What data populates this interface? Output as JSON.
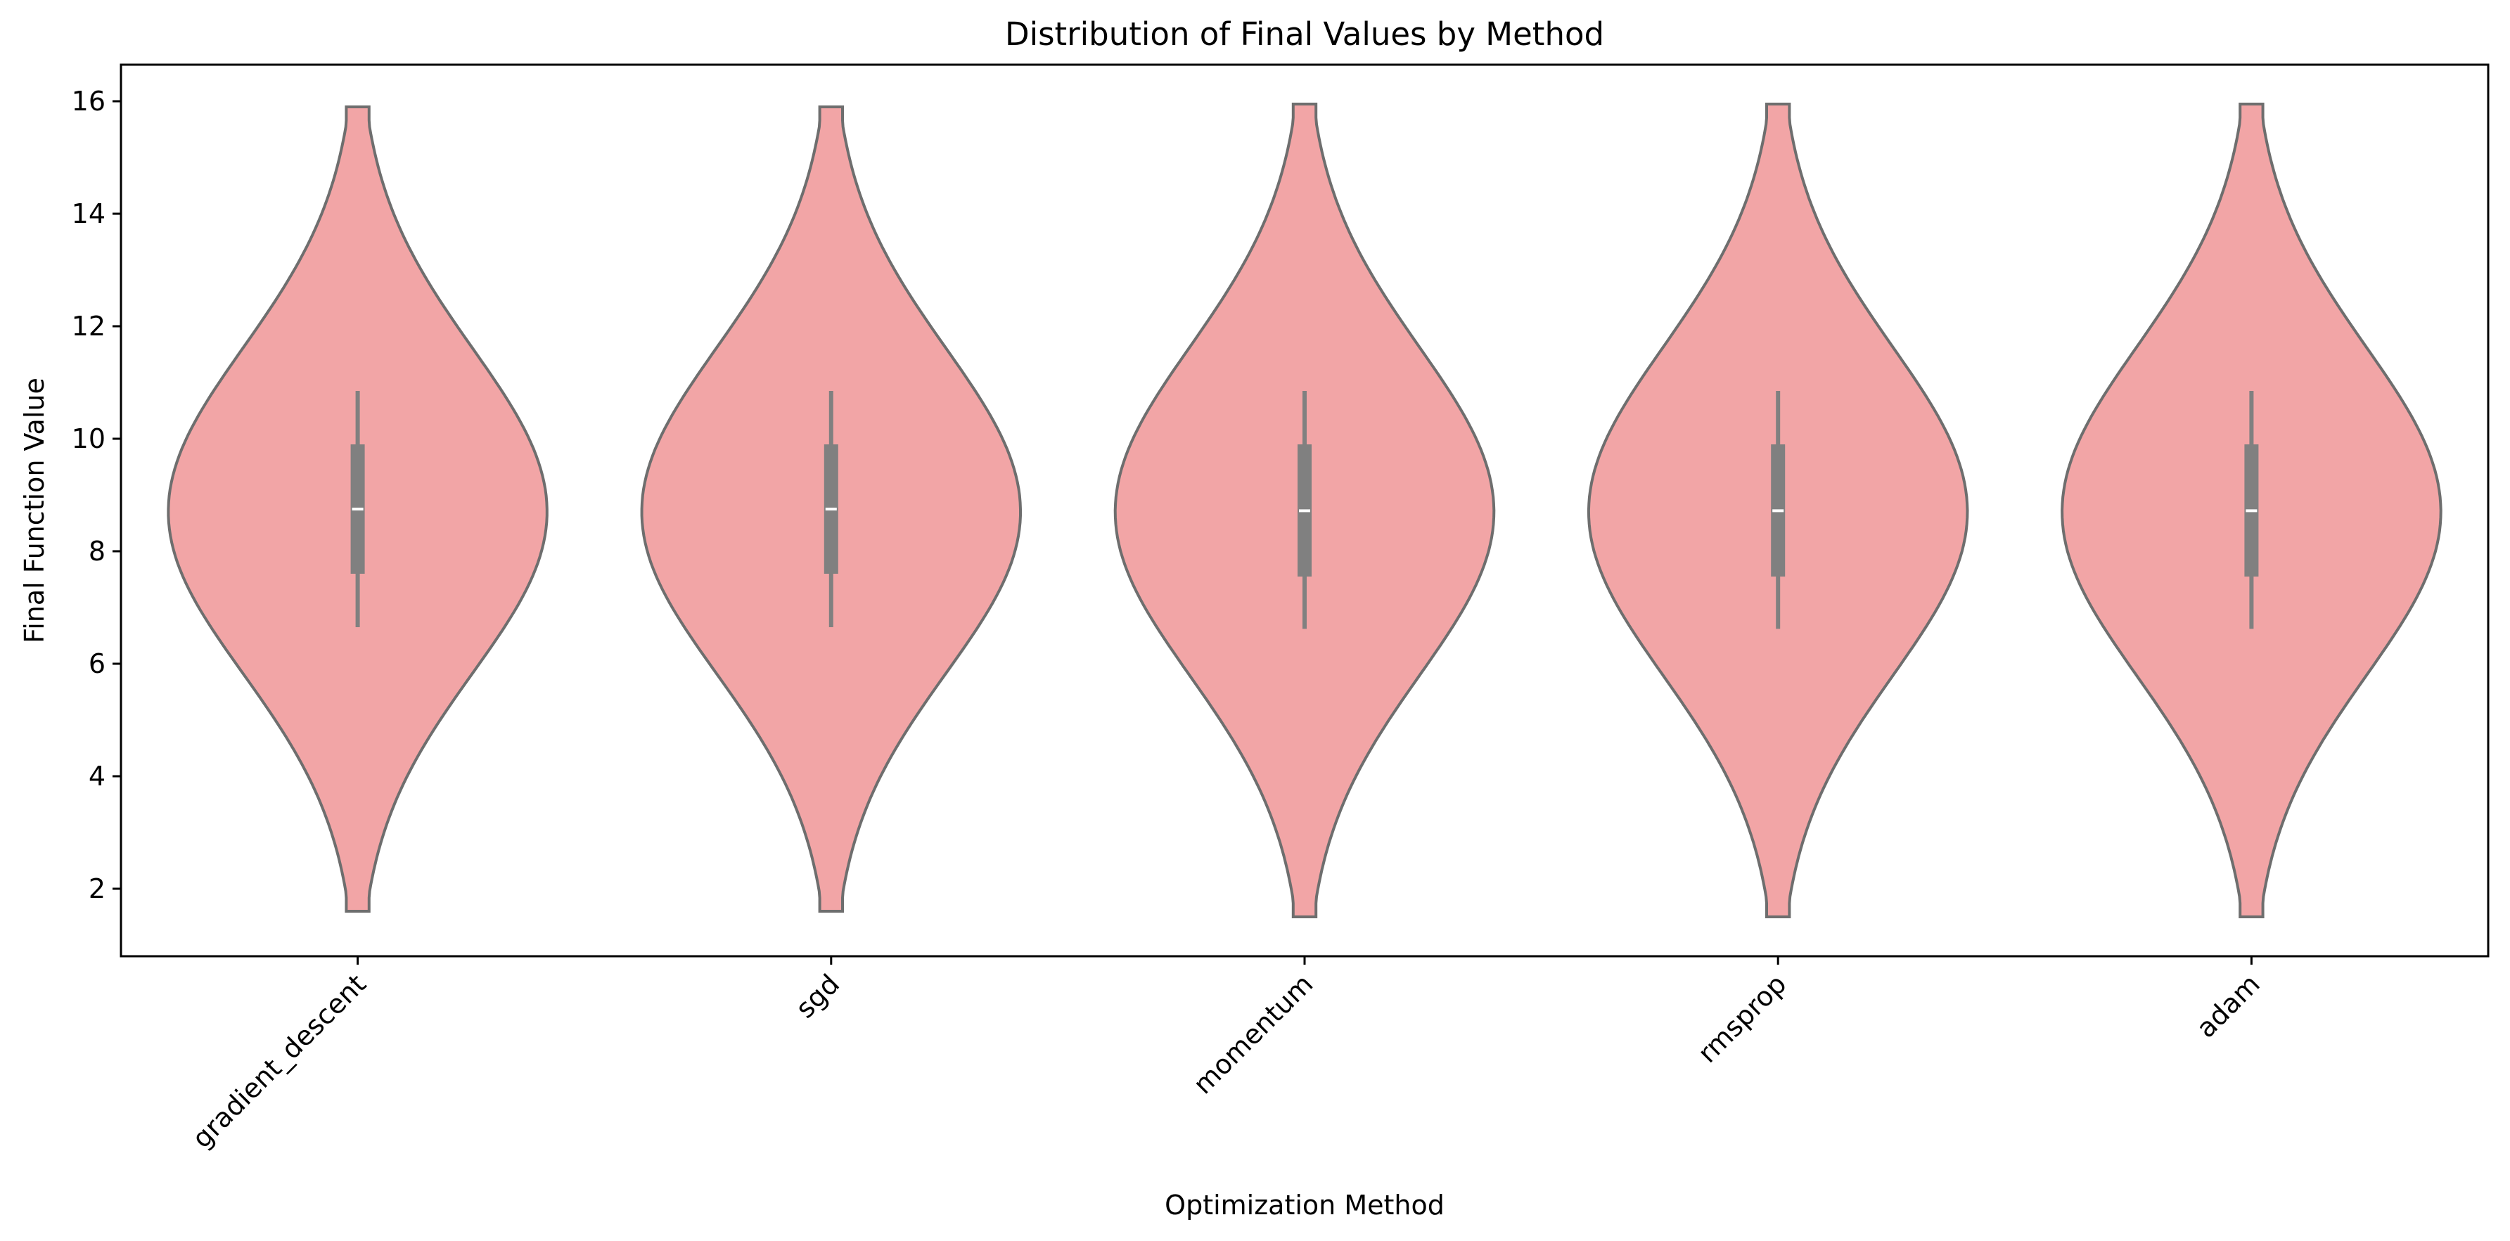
{
  "chart_data": {
    "type": "violin",
    "title": "Distribution of Final Values by Method",
    "xlabel": "Optimization Method",
    "ylabel": "Final Function Value",
    "categories": [
      "gradient_descent",
      "sgd",
      "momentum",
      "rmsprop",
      "adam"
    ],
    "ylim": [
      0.8,
      16.65
    ],
    "yticks": [
      2,
      4,
      6,
      8,
      10,
      12,
      14,
      16
    ],
    "grid": false,
    "violins": [
      {
        "category": "gradient_descent",
        "min": 1.6,
        "max": 15.9,
        "median": 8.75,
        "q1": 7.6,
        "q3": 9.9,
        "whisker_low": 6.65,
        "whisker_high": 10.85,
        "peak": 8.7,
        "max_half_width": 0.4
      },
      {
        "category": "sgd",
        "min": 1.6,
        "max": 15.9,
        "median": 8.75,
        "q1": 7.6,
        "q3": 9.9,
        "whisker_low": 6.65,
        "whisker_high": 10.85,
        "peak": 8.7,
        "max_half_width": 0.4
      },
      {
        "category": "momentum",
        "min": 1.5,
        "max": 15.95,
        "median": 8.72,
        "q1": 7.55,
        "q3": 9.9,
        "whisker_low": 6.62,
        "whisker_high": 10.85,
        "peak": 8.7,
        "max_half_width": 0.4
      },
      {
        "category": "rmsprop",
        "min": 1.5,
        "max": 15.95,
        "median": 8.72,
        "q1": 7.55,
        "q3": 9.9,
        "whisker_low": 6.62,
        "whisker_high": 10.85,
        "peak": 8.7,
        "max_half_width": 0.4
      },
      {
        "category": "adam",
        "min": 1.5,
        "max": 15.95,
        "median": 8.72,
        "q1": 7.55,
        "q3": 9.9,
        "whisker_low": 6.62,
        "whisker_high": 10.85,
        "peak": 8.7,
        "max_half_width": 0.4
      }
    ],
    "colors": {
      "fill": "#f2a5a6",
      "outline": "#6e6e6e",
      "box": "#808080",
      "median": "#ffffff"
    }
  }
}
